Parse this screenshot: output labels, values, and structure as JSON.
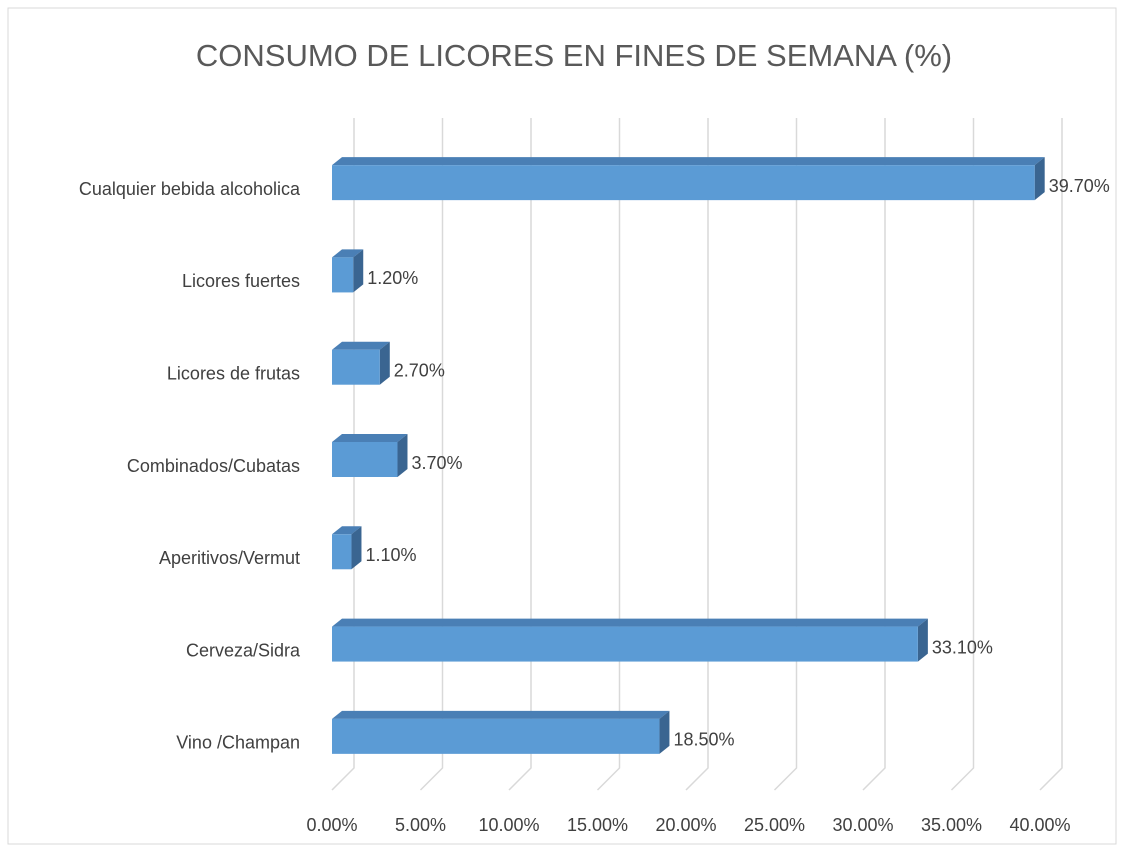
{
  "chart_data": {
    "type": "bar3d_horizontal",
    "title": "CONSUMO DE LICORES EN FINES DE SEMANA (%)",
    "categories": [
      "Cualquier bebida alcoholica",
      "Licores fuertes",
      "Licores de frutas",
      "Combinados/Cubatas",
      "Aperitivos/Vermut",
      "Cerveza/Sidra",
      "Vino /Champan"
    ],
    "values": [
      39.7,
      1.2,
      2.7,
      3.7,
      1.1,
      33.1,
      18.5
    ],
    "value_labels": [
      "39.70%",
      "1.20%",
      "2.70%",
      "3.70%",
      "1.10%",
      "33.10%",
      "18.50%"
    ],
    "color": "#5b9bd5",
    "xlim": [
      0,
      40
    ],
    "xticks": [
      {
        "value": 0,
        "label": "0.00%"
      },
      {
        "value": 5,
        "label": "5.00%"
      },
      {
        "value": 10,
        "label": "10.00%"
      },
      {
        "value": 15,
        "label": "15.00%"
      },
      {
        "value": 20,
        "label": "20.00%"
      },
      {
        "value": 25,
        "label": "25.00%"
      },
      {
        "value": 30,
        "label": "30.00%"
      },
      {
        "value": 35,
        "label": "35.00%"
      },
      {
        "value": 40,
        "label": "40.00%"
      }
    ],
    "grid": true
  }
}
